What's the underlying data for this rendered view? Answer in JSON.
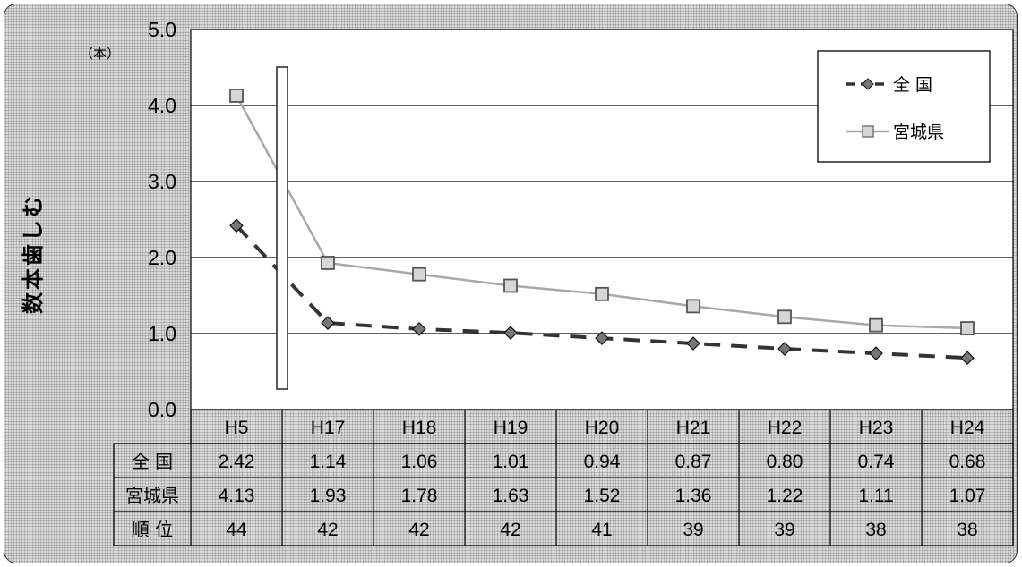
{
  "chart_data": {
    "type": "line",
    "ylabel": "むし歯本数",
    "unit": "（本）",
    "ylim": [
      0,
      5
    ],
    "yticks": [
      "0.0",
      "1.0",
      "2.0",
      "3.0",
      "4.0",
      "5.0"
    ],
    "categories": [
      "H5",
      "H17",
      "H18",
      "H19",
      "H20",
      "H21",
      "H22",
      "H23",
      "H24"
    ],
    "series": [
      {
        "name": "全 国",
        "values": [
          2.42,
          1.14,
          1.06,
          1.01,
          0.94,
          0.87,
          0.8,
          0.74,
          0.68
        ],
        "labels": [
          "2.42",
          "1.14",
          "1.06",
          "1.01",
          "0.94",
          "0.87",
          "0.80",
          "0.74",
          "0.68"
        ],
        "color": "#333333",
        "marker": "diamond",
        "line": "dashed"
      },
      {
        "name": "宮城県",
        "values": [
          4.13,
          1.93,
          1.78,
          1.63,
          1.52,
          1.36,
          1.22,
          1.11,
          1.07
        ],
        "labels": [
          "4.13",
          "1.93",
          "1.78",
          "1.63",
          "1.52",
          "1.36",
          "1.22",
          "1.11",
          "1.07"
        ],
        "color": "#a8a8a8",
        "marker": "square",
        "line": "solid"
      }
    ],
    "table": {
      "row_headers": [
        "全 国",
        "宮城県",
        "順 位"
      ],
      "rank": [
        "44",
        "42",
        "42",
        "42",
        "41",
        "39",
        "39",
        "38",
        "38"
      ]
    },
    "legend_position": "top-right",
    "grid": true,
    "axis_break": "between H5 and H17"
  }
}
